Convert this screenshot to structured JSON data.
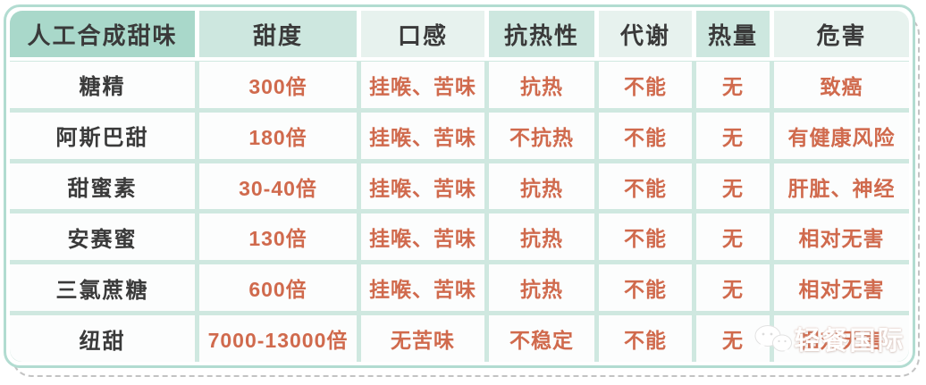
{
  "chart_data": {
    "type": "table",
    "title": "人工合成甜味",
    "columns": [
      "人工合成甜味",
      "甜度",
      "口感",
      "抗热性",
      "代谢",
      "热量",
      "危害"
    ],
    "rows": [
      [
        "糖精",
        "300倍",
        "挂喉、苦味",
        "抗热",
        "不能",
        "无",
        "致癌"
      ],
      [
        "阿斯巴甜",
        "180倍",
        "挂喉、苦味",
        "不抗热",
        "不能",
        "无",
        "有健康风险"
      ],
      [
        "甜蜜素",
        "30-40倍",
        "挂喉、苦味",
        "抗热",
        "不能",
        "无",
        "肝脏、神经"
      ],
      [
        "安赛蜜",
        "130倍",
        "挂喉、苦味",
        "抗热",
        "不能",
        "无",
        "相对无害"
      ],
      [
        "三氯蔗糖",
        "600倍",
        "挂喉、苦味",
        "抗热",
        "不能",
        "无",
        "相对无害"
      ],
      [
        "纽甜",
        "7000-13000倍",
        "无苦味",
        "不稳定",
        "不能",
        "无",
        "相对无害"
      ]
    ],
    "layout": {
      "grid": "on",
      "header_row": true,
      "rounded_card": true,
      "dashed_offset_shadow": true
    }
  },
  "watermark": {
    "text": "轻餐国际",
    "icon": "wechat-icon"
  },
  "colors": {
    "header-primary": "#a9d8ca",
    "header-teal": "#cde7df",
    "header-pale": "#e7f2ee",
    "grid-line": "#cfe8e0",
    "card-border": "#b2dcd1",
    "cell-bg": "#fcfdfd",
    "text-dark": "#3a3a3a",
    "text-accent": "#d06a4d",
    "shadow-dash": "#c3c3c3",
    "watermark": "#ffffff"
  }
}
